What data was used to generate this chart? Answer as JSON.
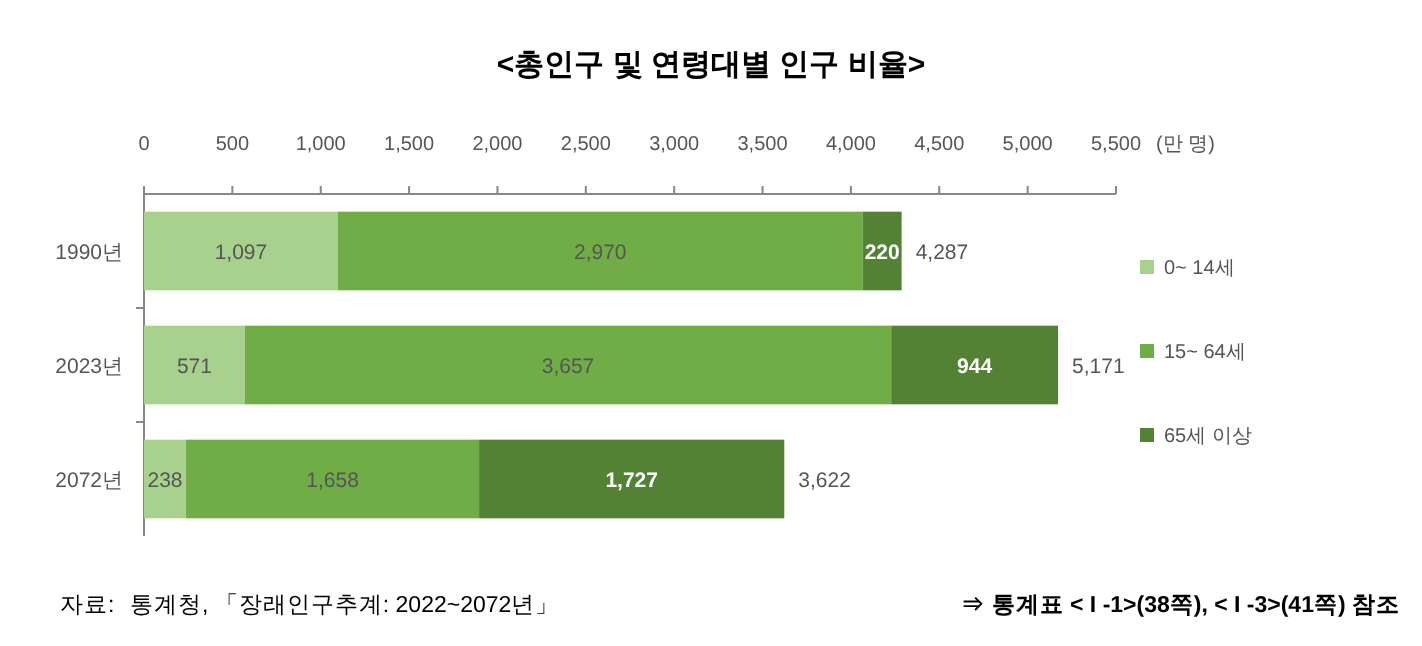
{
  "chart_data": {
    "type": "bar",
    "orientation": "horizontal",
    "stacked": true,
    "title": "<총인구 및 연령대별 인구 비율>",
    "xlabel": "(만 명)",
    "categories": [
      "1990년",
      "2023년",
      "2072년"
    ],
    "series": [
      {
        "name": "0~ 14세",
        "color": "#a9d18e",
        "values": [
          1097,
          571,
          238
        ],
        "value_labels": [
          "1,097",
          "571",
          "238"
        ]
      },
      {
        "name": "15~ 64세",
        "color": "#70ad47",
        "values": [
          2970,
          3657,
          1658
        ],
        "value_labels": [
          "2,970",
          "3,657",
          "1,658"
        ]
      },
      {
        "name": "65세 이상",
        "color": "#548235",
        "values": [
          220,
          944,
          1727
        ],
        "value_labels": [
          "220",
          "944",
          "1,727"
        ]
      }
    ],
    "totals": [
      "4,287",
      "5,171",
      "3,622"
    ],
    "xlim": [
      0,
      5500
    ],
    "xticks": [
      0,
      500,
      {
        "value": 1000,
        "label": "1,000"
      },
      {
        "value": 1500,
        "label": "1,500"
      },
      {
        "value": 2000,
        "label": "2,000"
      },
      {
        "value": 2500,
        "label": "2,500"
      },
      {
        "value": 3000,
        "label": "3,000"
      },
      {
        "value": 3500,
        "label": "3,500"
      },
      {
        "value": 4000,
        "label": "4,000"
      },
      {
        "value": 4500,
        "label": "4,500"
      },
      {
        "value": 5000,
        "label": "5,000"
      },
      {
        "value": 5500,
        "label": "5,500"
      }
    ],
    "legend": "right",
    "grid": false,
    "annotations": [
      "자료:",
      "통계청, 「장래인구추계: 2022~2072년」",
      "⇒ 통계표 < I -1>(38쪽), < I -3>(41쪽) 참조"
    ]
  }
}
